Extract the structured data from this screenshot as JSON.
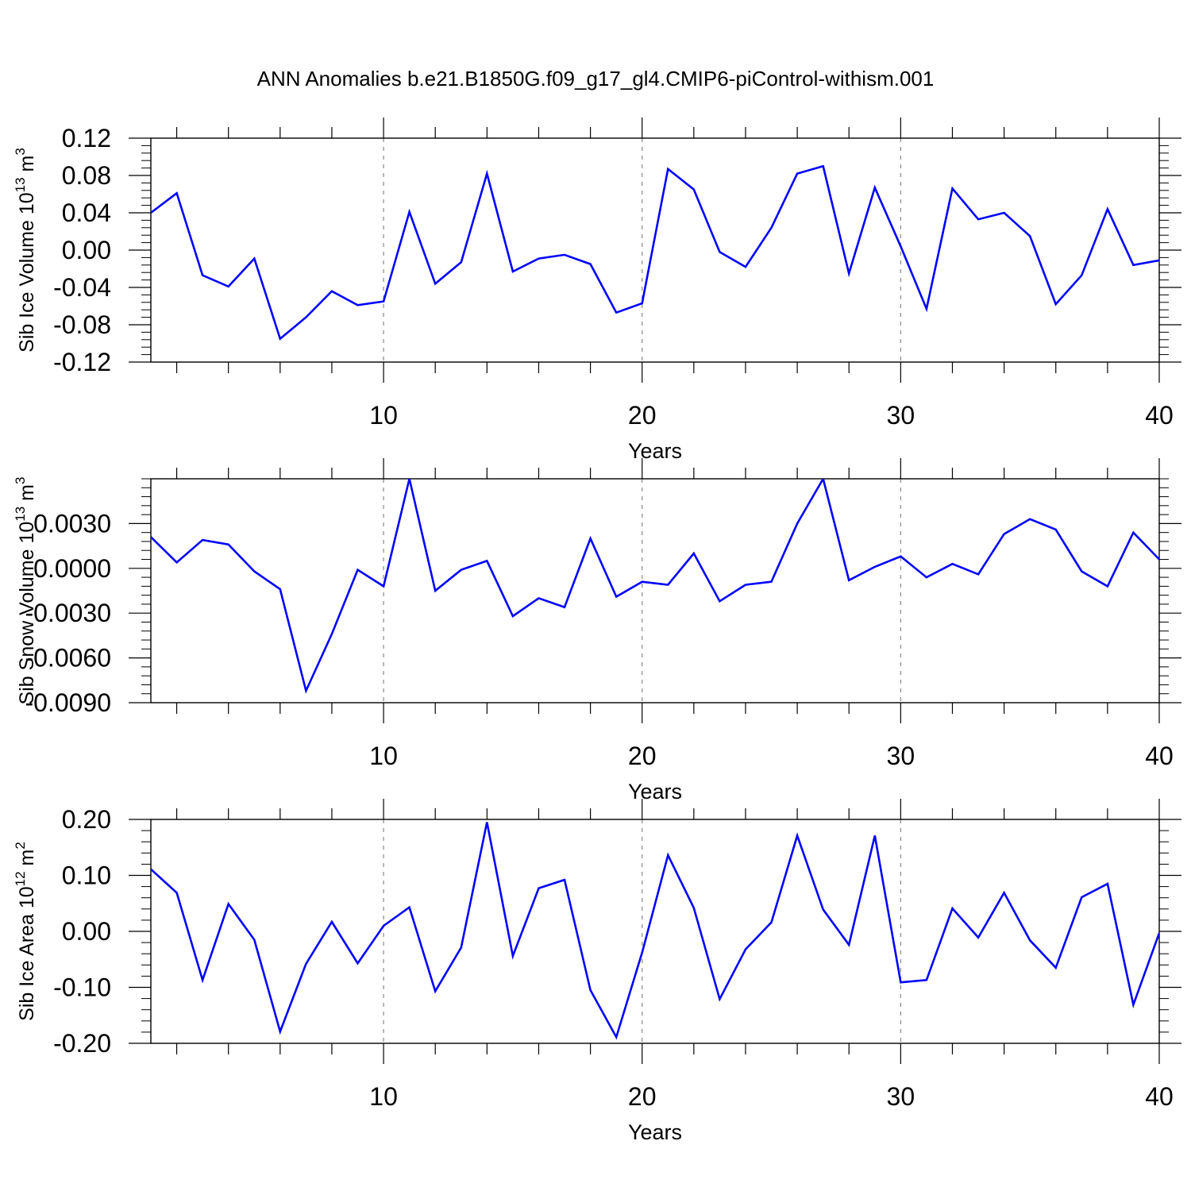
{
  "title": "ANN Anomalies b.e21.B1850G.f09_g17_gl4.CMIP6-piControl-withism.001",
  "chart_data": [
    {
      "type": "line",
      "ylabel": "Sib Ice Volume",
      "ylabel_scale": "10",
      "ylabel_exp": "13",
      "ylabel_unit": "m",
      "ylabel_unit_exp": "3",
      "xlabel": "Years",
      "xlim": [
        1,
        40
      ],
      "ylim": [
        -0.12,
        0.12
      ],
      "xticks": [
        10,
        20,
        30,
        40
      ],
      "yticks": [
        -0.12,
        -0.08,
        -0.04,
        0.0,
        0.04,
        0.08,
        0.12
      ],
      "ytick_labels": [
        "-0.12",
        "-0.08",
        "-0.04",
        "0.00",
        "0.04",
        "0.08",
        "0.12"
      ],
      "color": "#0000ff",
      "x": [
        1,
        2,
        3,
        4,
        5,
        6,
        7,
        8,
        9,
        10,
        11,
        12,
        13,
        14,
        15,
        16,
        17,
        18,
        19,
        20,
        21,
        22,
        23,
        24,
        25,
        26,
        27,
        28,
        29,
        30,
        31,
        32,
        33,
        34,
        35,
        36,
        37,
        38,
        39,
        40
      ],
      "values": [
        0.04,
        0.061,
        -0.027,
        -0.039,
        -0.009,
        -0.095,
        -0.072,
        -0.044,
        -0.059,
        -0.055,
        0.041,
        -0.036,
        -0.013,
        0.082,
        -0.023,
        -0.009,
        -0.005,
        -0.015,
        -0.067,
        -0.057,
        0.087,
        0.065,
        -0.002,
        -0.018,
        0.024,
        0.082,
        0.09,
        -0.025,
        0.067,
        0.004,
        -0.063,
        0.066,
        0.033,
        0.04,
        0.015,
        -0.058,
        -0.027,
        0.044,
        -0.016,
        -0.011
      ]
    },
    {
      "type": "line",
      "ylabel": "Sib Snow Volume",
      "ylabel_scale": "10",
      "ylabel_exp": "13",
      "ylabel_unit": "m",
      "ylabel_unit_exp": "3",
      "xlabel": "Years",
      "xlim": [
        1,
        40
      ],
      "ylim": [
        -0.009,
        0.006
      ],
      "xticks": [
        10,
        20,
        30,
        40
      ],
      "yticks": [
        -0.009,
        -0.006,
        -0.003,
        0.0,
        0.003
      ],
      "ytick_labels": [
        "-0.0090",
        "-0.0060",
        "-0.0030",
        "0.0000",
        "0.0030"
      ],
      "color": "#0000ff",
      "x": [
        1,
        2,
        3,
        4,
        5,
        6,
        7,
        8,
        9,
        10,
        11,
        12,
        13,
        14,
        15,
        16,
        17,
        18,
        19,
        20,
        21,
        22,
        23,
        24,
        25,
        26,
        27,
        28,
        29,
        30,
        31,
        32,
        33,
        34,
        35,
        36,
        37,
        38,
        39,
        40
      ],
      "values": [
        0.0021,
        0.0004,
        0.0019,
        0.0016,
        -0.0002,
        -0.0014,
        -0.0082,
        -0.0044,
        -0.0001,
        -0.0012,
        0.006,
        -0.0015,
        -0.0001,
        0.0005,
        -0.0032,
        -0.002,
        -0.0026,
        0.002,
        -0.0019,
        -0.0009,
        -0.0011,
        0.001,
        -0.0022,
        -0.0011,
        -0.0009,
        0.003,
        0.006,
        -0.0008,
        0.0001,
        0.0008,
        -0.0006,
        0.0003,
        -0.0004,
        0.0023,
        0.0033,
        0.0026,
        -0.0002,
        -0.0012,
        0.0024,
        0.0006
      ]
    },
    {
      "type": "line",
      "ylabel": "Sib Ice Area",
      "ylabel_scale": "10",
      "ylabel_exp": "12",
      "ylabel_unit": "m",
      "ylabel_unit_exp": "2",
      "xlabel": "Years",
      "xlim": [
        1,
        40
      ],
      "ylim": [
        -0.2,
        0.2
      ],
      "xticks": [
        10,
        20,
        30,
        40
      ],
      "yticks": [
        -0.2,
        -0.1,
        0.0,
        0.1,
        0.2
      ],
      "ytick_labels": [
        "-0.20",
        "-0.10",
        "0.00",
        "0.10",
        "0.20"
      ],
      "color": "#0000ff",
      "x": [
        1,
        2,
        3,
        4,
        5,
        6,
        7,
        8,
        9,
        10,
        11,
        12,
        13,
        14,
        15,
        16,
        17,
        18,
        19,
        20,
        21,
        22,
        23,
        24,
        25,
        26,
        27,
        28,
        29,
        30,
        31,
        32,
        33,
        34,
        35,
        36,
        37,
        38,
        39,
        40
      ],
      "values": [
        0.111,
        0.069,
        -0.087,
        0.049,
        -0.015,
        -0.179,
        -0.058,
        0.017,
        -0.057,
        0.01,
        0.043,
        -0.107,
        -0.029,
        0.195,
        -0.044,
        0.077,
        0.092,
        -0.105,
        -0.189,
        -0.038,
        0.136,
        0.042,
        -0.121,
        -0.032,
        0.016,
        0.171,
        0.039,
        -0.024,
        0.171,
        -0.091,
        -0.087,
        0.041,
        -0.011,
        0.069,
        -0.016,
        -0.065,
        0.061,
        0.085,
        -0.131,
        -0.003
      ]
    }
  ]
}
